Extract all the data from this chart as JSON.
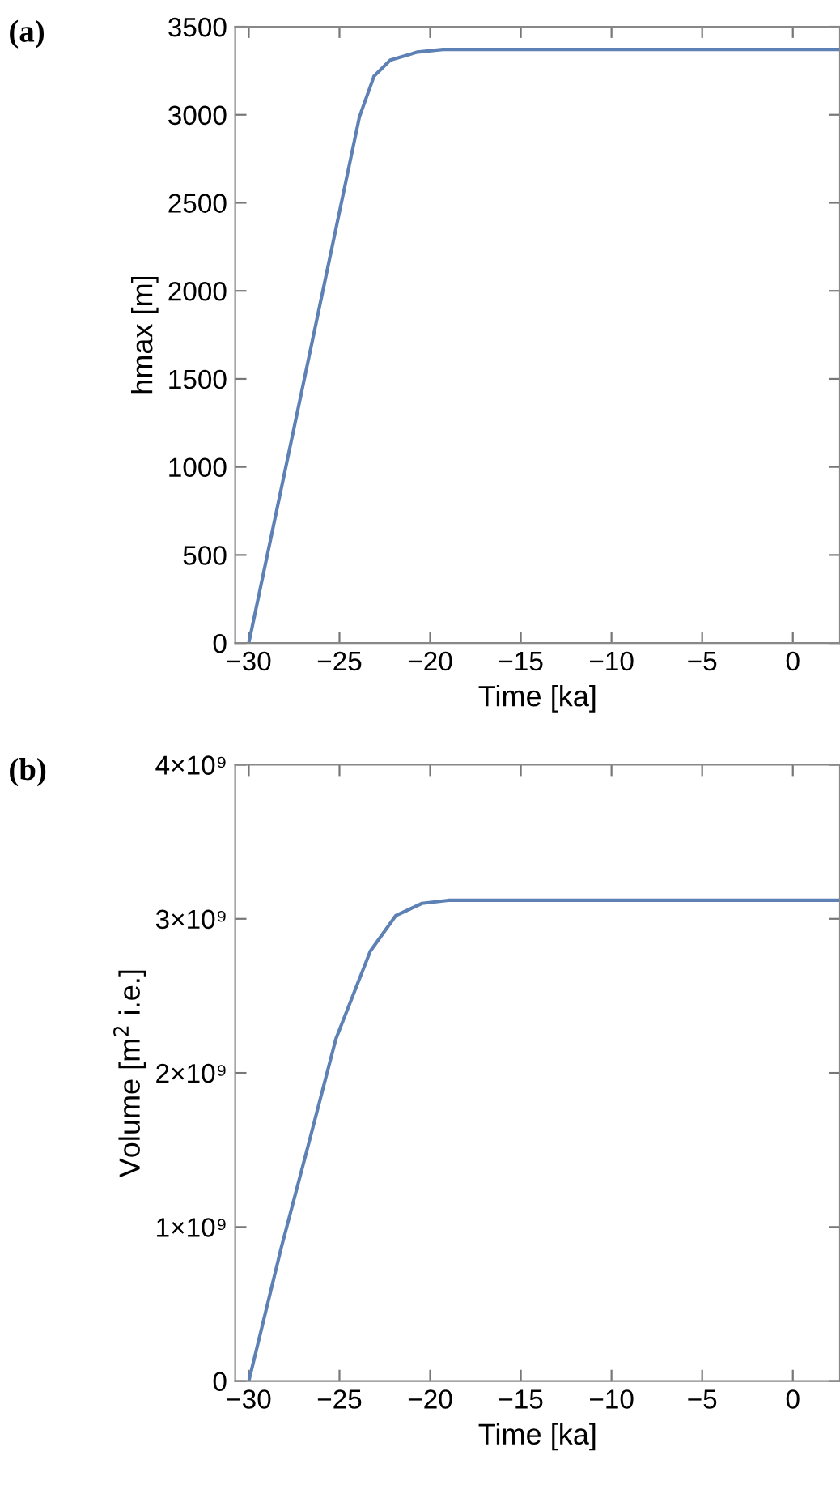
{
  "chart_data": [
    {
      "type": "line",
      "title": "(a)",
      "xlabel": "Time [ka]",
      "ylabel": "hmax [m]",
      "xlim": [
        -30.75,
        2.6
      ],
      "ylim": [
        0,
        3500
      ],
      "xticks": [
        -30,
        -25,
        -20,
        -15,
        -10,
        -5,
        0
      ],
      "yticks": [
        0,
        500,
        1000,
        1500,
        2000,
        2500,
        3000,
        3500
      ],
      "grid": false,
      "legend": false,
      "series": [
        {
          "color": "#5e81b5",
          "x": [
            -30,
            -23.9,
            -23.1,
            -22.2,
            -20.7,
            -19.3,
            -15,
            -10,
            -5,
            0,
            2.6
          ],
          "values": [
            0,
            2988,
            3218,
            3310,
            3356,
            3371,
            3371,
            3371,
            3371,
            3371,
            3371
          ]
        }
      ]
    },
    {
      "type": "line",
      "title": "(b)",
      "xlabel": "Time [ka]",
      "ylabel": "Volume [m$^{2}$ i.e.]",
      "xlim": [
        -30.75,
        2.6
      ],
      "ylim": [
        0,
        4000000000
      ],
      "xticks": [
        -30,
        -25,
        -20,
        -15,
        -10,
        -5,
        0
      ],
      "yticks": [
        0,
        {
          "value": 1000000000,
          "label": "1×10⁹"
        },
        {
          "value": 2000000000,
          "label": "2×10⁹"
        },
        {
          "value": 3000000000,
          "label": "3×10⁹"
        },
        {
          "value": 4000000000,
          "label": "4×10⁹"
        }
      ],
      "grid": false,
      "legend": false,
      "series": [
        {
          "color": "#5e81b5",
          "x": [
            -30,
            -28.2,
            -26.7,
            -25.2,
            -23.3,
            -21.9,
            -20.45,
            -19,
            -15,
            -10,
            -5,
            0,
            2.6
          ],
          "values": [
            0,
            870000000,
            1540000000,
            2220000000,
            2790000000,
            3020000000,
            3100000000,
            3120000000,
            3120000000,
            3120000000,
            3120000000,
            3120000000,
            3120000000
          ]
        }
      ]
    }
  ]
}
